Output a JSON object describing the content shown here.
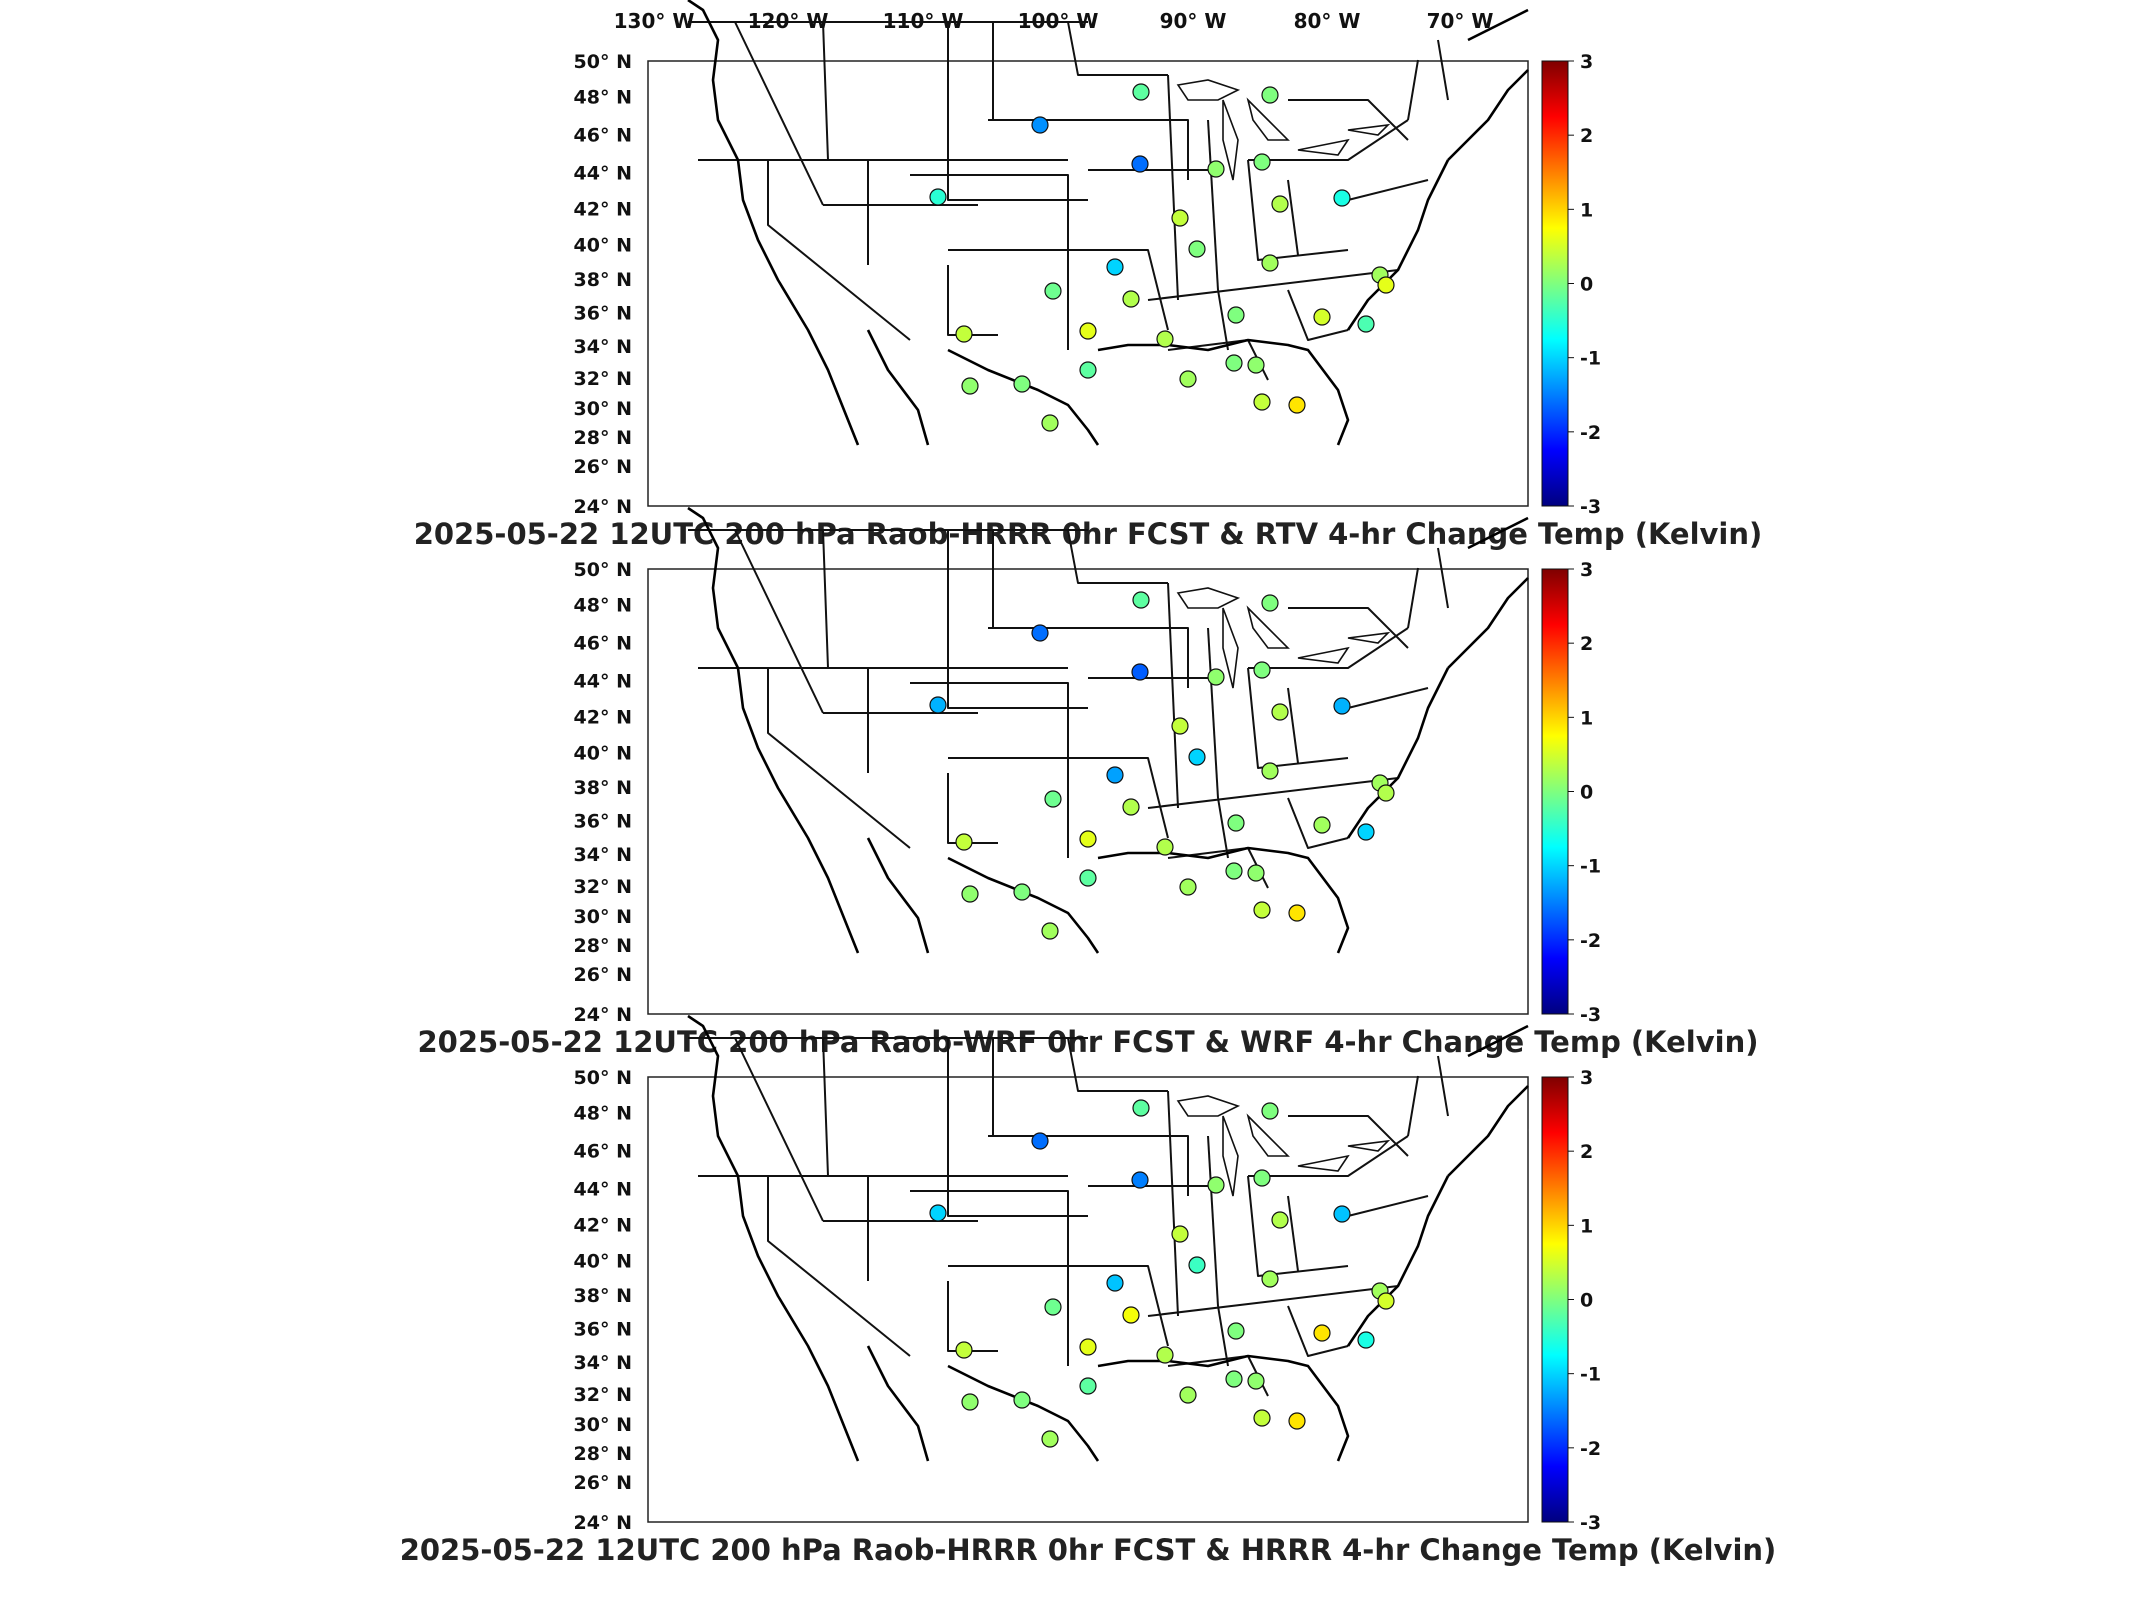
{
  "lon_labels": [
    "130° W",
    "120° W",
    "110° W",
    "100° W",
    "90° W",
    "80° W",
    "70° W"
  ],
  "lat_labels": [
    "50° N",
    "48° N",
    "46° N",
    "44° N",
    "42° N",
    "40° N",
    "38° N",
    "36° N",
    "34° N",
    "32° N",
    "30° N",
    "28° N",
    "26° N",
    "24° N"
  ],
  "colorbar": {
    "min": -3,
    "max": 3,
    "ticks": [
      "3",
      "2",
      "1",
      "0",
      "-1",
      "-2",
      "-3"
    ],
    "colormap": [
      "#00007f",
      "#0000ff",
      "#007fff",
      "#00ffff",
      "#7fff7f",
      "#ffff00",
      "#ff7f00",
      "#ff0000",
      "#7f0000"
    ]
  },
  "panels": [
    {
      "title": "2025-05-22 12UTC 200 hPa Raob-HRRR 0hr FCST & RTV 4-hr Change Temp (Kelvin)",
      "raob_values": [
        -0.2,
        -1.4,
        0.0,
        -1.6,
        0.1,
        0.0,
        -0.5,
        0.3,
        -0.6,
        0.4,
        0.0,
        0.2,
        -1.0,
        0.2,
        -0.1,
        0.6,
        0.3,
        0.5,
        0.4,
        0.6,
        0.3,
        0.0,
        -0.3,
        0.0,
        -0.2,
        0.1,
        0.2,
        0.4,
        0.9,
        0.1,
        0.0,
        0.2
      ]
    },
    {
      "title": "2025-05-22 12UTC 200 hPa Raob-WRF 0hr FCST & WRF 4-hr Change Temp (Kelvin)",
      "raob_values": [
        -0.2,
        -1.6,
        0.0,
        -1.7,
        0.1,
        0.0,
        -1.2,
        0.3,
        -1.2,
        0.4,
        -1.0,
        0.2,
        -1.3,
        0.2,
        -0.1,
        0.3,
        0.3,
        0.2,
        0.4,
        0.6,
        0.3,
        0.0,
        -1.0,
        0.0,
        -0.2,
        0.1,
        0.2,
        0.4,
        0.9,
        0.1,
        0.0,
        0.2
      ]
    },
    {
      "title": "2025-05-22 12UTC 200 hPa Raob-HRRR 0hr FCST & HRRR 4-hr Change Temp (Kelvin)",
      "raob_values": [
        -0.2,
        -1.6,
        0.0,
        -1.5,
        0.1,
        0.0,
        -1.0,
        0.3,
        -1.1,
        0.4,
        -0.4,
        0.2,
        -1.1,
        0.2,
        -0.1,
        0.5,
        0.7,
        0.9,
        0.4,
        0.6,
        0.3,
        0.0,
        -0.6,
        0.0,
        -0.2,
        0.1,
        0.2,
        0.4,
        0.9,
        0.1,
        0.0,
        0.2
      ]
    }
  ]
}
